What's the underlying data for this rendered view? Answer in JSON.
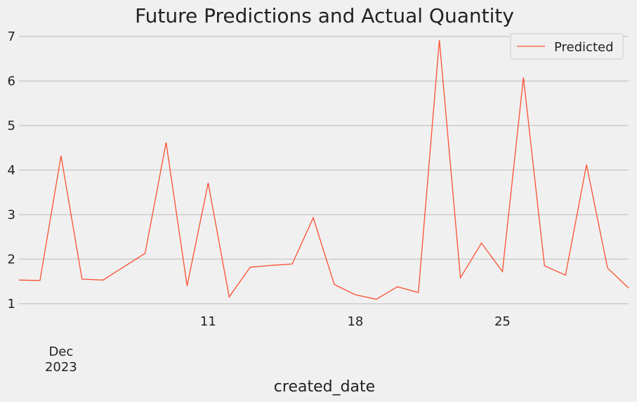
{
  "chart_data": {
    "type": "line",
    "title": "Future Predictions and Actual Quantity",
    "x_label": "created_date",
    "x": [
      "2023-12-02",
      "2023-12-03",
      "2023-12-04",
      "2023-12-05",
      "2023-12-06",
      "2023-12-08",
      "2023-12-09",
      "2023-12-10",
      "2023-12-11",
      "2023-12-12",
      "2023-12-13",
      "2023-12-14",
      "2023-12-15",
      "2023-12-16",
      "2023-12-17",
      "2023-12-18",
      "2023-12-19",
      "2023-12-20",
      "2023-12-21",
      "2023-12-22",
      "2023-12-23",
      "2023-12-24",
      "2023-12-25",
      "2023-12-26",
      "2023-12-27",
      "2023-12-28",
      "2023-12-29",
      "2023-12-30",
      "2023-12-31"
    ],
    "series": [
      {
        "name": "Predicted",
        "color": "#fc4f30",
        "values": [
          1.53,
          1.52,
          4.32,
          1.55,
          1.53,
          2.13,
          4.62,
          1.4,
          3.71,
          1.15,
          1.82,
          1.86,
          1.89,
          2.93,
          1.43,
          1.2,
          1.1,
          1.38,
          1.25,
          6.92,
          1.58,
          2.36,
          1.72,
          6.08,
          1.85,
          1.64,
          4.12,
          1.8,
          1.35
        ]
      }
    ],
    "xlim": [
      "2023-12-02",
      "2023-12-31"
    ],
    "xticks": [
      {
        "value": "2023-12-04",
        "label": "Dec\n2023"
      },
      {
        "value": "2023-12-11",
        "label": "11"
      },
      {
        "value": "2023-12-18",
        "label": "18"
      },
      {
        "value": "2023-12-25",
        "label": "25"
      }
    ],
    "ylim": [
      0.84,
      7.22
    ],
    "yticks": [
      1,
      2,
      3,
      4,
      5,
      6,
      7
    ],
    "grid": true,
    "legend": "upper right"
  }
}
